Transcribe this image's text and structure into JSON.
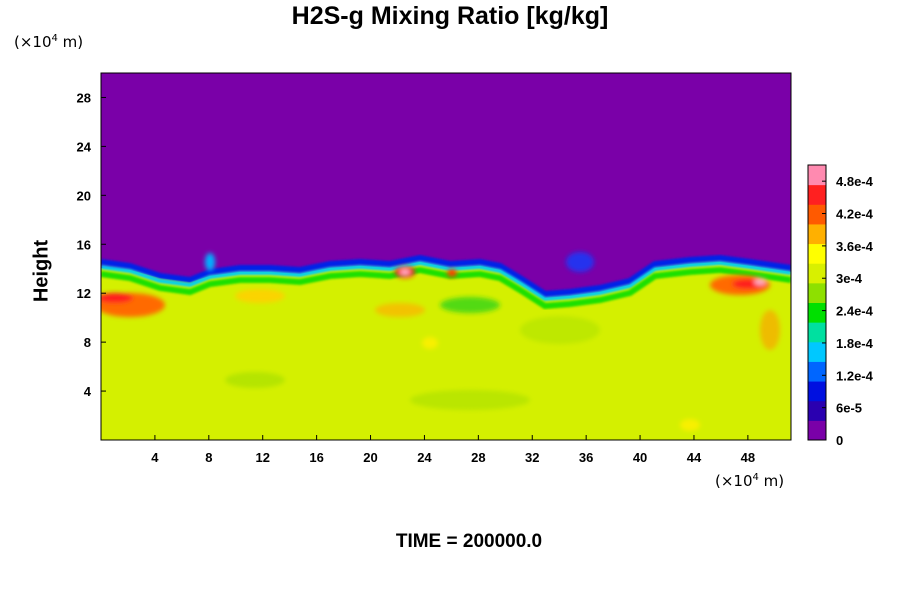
{
  "chart_data": {
    "type": "heatmap",
    "title": "H2S-g Mixing Ratio [kg/kg]",
    "ylabel": "Height",
    "xlabel": "",
    "x_unit": {
      "prefix": "(×10",
      "exp": "4",
      "suffix": " m)"
    },
    "y_unit": {
      "prefix": "(×10",
      "exp": "4",
      "suffix": " m)"
    },
    "footer": "TIME = 200000.0",
    "xlim": [
      0,
      51.2
    ],
    "ylim": [
      0,
      30
    ],
    "x_ticks": [
      "4",
      "8",
      "12",
      "16",
      "20",
      "24",
      "28",
      "32",
      "36",
      "40",
      "44",
      "48"
    ],
    "y_ticks": [
      "4",
      "8",
      "12",
      "16",
      "20",
      "24",
      "28"
    ],
    "colorbar": {
      "range": [
        0,
        0.00051
      ],
      "labels": [
        "0",
        "6e-5",
        "1.2e-4",
        "1.8e-4",
        "2.4e-4",
        "3e-4",
        "3.6e-4",
        "4.2e-4",
        "4.8e-4"
      ],
      "label_values": [
        0,
        6e-05,
        0.00012,
        0.00018,
        0.00024,
        0.0003,
        0.00036,
        0.00042,
        0.00048
      ],
      "colors": [
        "#7a00a8",
        "#2a00b0",
        "#0010e0",
        "#0066ff",
        "#00c8ff",
        "#00e0a0",
        "#00e000",
        "#8ee000",
        "#d8f000",
        "#ffff00",
        "#ffb000",
        "#ff5a00",
        "#ff2020",
        "#ff8ab0"
      ]
    },
    "field_description_values": {
      "upper_region_value": 0,
      "lower_region_value": 0.00033,
      "interface_height_range": [
        11.5,
        15
      ]
    }
  }
}
